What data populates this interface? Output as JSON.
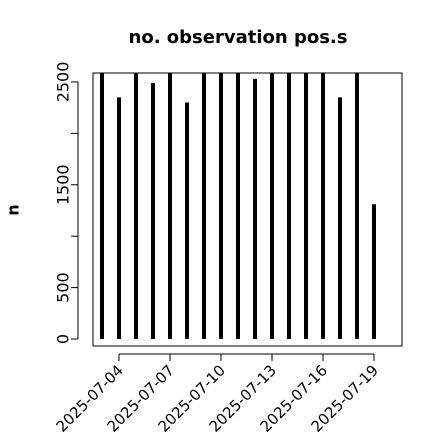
{
  "chart_data": {
    "type": "spike",
    "title": "no. observation pos.s",
    "ylabel": "n",
    "categories": [
      null,
      "2025-07-04",
      null,
      null,
      "2025-07-07",
      null,
      null,
      "2025-07-10",
      null,
      null,
      "2025-07-13",
      null,
      null,
      "2025-07-16",
      null,
      null,
      "2025-07-19"
    ],
    "category_label_colors": [
      "#000000",
      "#000000",
      "#000000",
      "#000000",
      "#000000",
      "#000000",
      "#000000",
      "#228b22",
      "#000000",
      "#000000",
      "#000000",
      "#000000",
      "#000000",
      "#000000",
      "#000000",
      "#000000",
      "#000000"
    ],
    "values": [
      2600,
      2350,
      2600,
      2490,
      2600,
      2300,
      2600,
      2600,
      2600,
      2530,
      2600,
      2600,
      2600,
      2600,
      2350,
      2600,
      1310
    ],
    "color": "#000000",
    "ylim": [
      -68,
      2587
    ],
    "yticks": [
      0,
      500,
      {
        "value": 1000,
        "label": null
      },
      1500,
      {
        "value": 2000,
        "label": null
      },
      2500
    ]
  }
}
